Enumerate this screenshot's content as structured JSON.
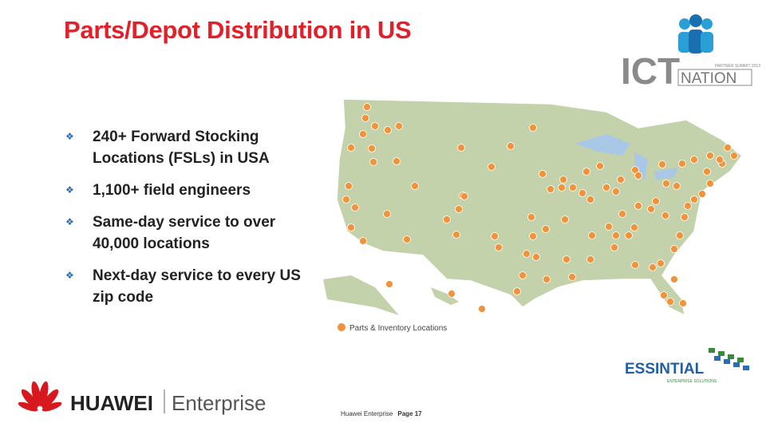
{
  "header": {
    "title": "Parts/Depot Distribution in US"
  },
  "bullets": [
    "240+ Forward Stocking Locations (FSLs) in USA",
    "1,100+ field engineers",
    "Same-day service to over 40,000 locations",
    "Next-day service to every US zip code"
  ],
  "map": {
    "legend": "Parts & Inventory Locations"
  },
  "logos": {
    "ict": {
      "main": "ICT",
      "sub": "NATION",
      "tagline": "PARTNER SUMMIT 2013"
    },
    "essintial": {
      "name": "ESSINTIAL",
      "tagline": "ENTERPRISE SOLUTIONS"
    },
    "huawei": {
      "name": "HUAWEI",
      "division": "Enterprise"
    }
  },
  "footer": {
    "source": "Huawei Enterprise",
    "page": "Page 17"
  }
}
